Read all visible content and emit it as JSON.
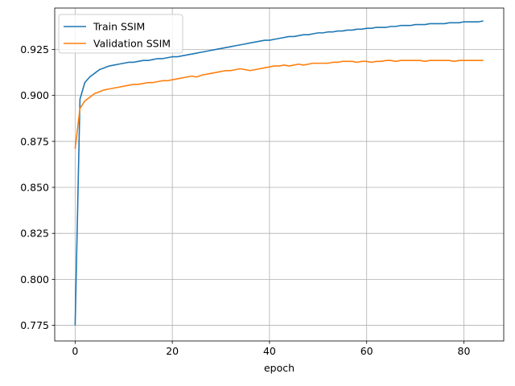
{
  "chart_data": {
    "type": "line",
    "title": "",
    "xlabel": "epoch",
    "ylabel": "",
    "xlim": [
      -4.2,
      88.2
    ],
    "ylim": [
      0.7665,
      0.9475
    ],
    "xticks": [
      0,
      20,
      40,
      60,
      80
    ],
    "yticks": [
      0.775,
      0.8,
      0.825,
      0.85,
      0.875,
      0.9,
      0.925
    ],
    "ytick_labels": [
      "0.775",
      "0.800",
      "0.825",
      "0.850",
      "0.875",
      "0.900",
      "0.925"
    ],
    "xtick_labels": [
      "0",
      "20",
      "40",
      "60",
      "80"
    ],
    "grid": true,
    "legend_position": "upper-left",
    "series": [
      {
        "name": "Train SSIM",
        "color": "#1f77b4",
        "x": [
          0,
          1,
          2,
          3,
          4,
          5,
          6,
          7,
          8,
          9,
          10,
          11,
          12,
          13,
          14,
          15,
          16,
          17,
          18,
          19,
          20,
          21,
          22,
          23,
          24,
          25,
          26,
          27,
          28,
          29,
          30,
          31,
          32,
          33,
          34,
          35,
          36,
          37,
          38,
          39,
          40,
          41,
          42,
          43,
          44,
          45,
          46,
          47,
          48,
          49,
          50,
          51,
          52,
          53,
          54,
          55,
          56,
          57,
          58,
          59,
          60,
          61,
          62,
          63,
          64,
          65,
          66,
          67,
          68,
          69,
          70,
          71,
          72,
          73,
          74,
          75,
          76,
          77,
          78,
          79,
          80,
          81,
          82,
          83,
          84
        ],
        "values": [
          0.775,
          0.898,
          0.907,
          0.91,
          0.912,
          0.914,
          0.915,
          0.916,
          0.9165,
          0.917,
          0.9175,
          0.918,
          0.918,
          0.9185,
          0.919,
          0.919,
          0.9195,
          0.92,
          0.92,
          0.9205,
          0.921,
          0.921,
          0.9215,
          0.922,
          0.9225,
          0.923,
          0.9235,
          0.924,
          0.9245,
          0.925,
          0.9255,
          0.926,
          0.9265,
          0.927,
          0.9275,
          0.928,
          0.9285,
          0.929,
          0.9295,
          0.93,
          0.93,
          0.9305,
          0.931,
          0.9315,
          0.932,
          0.932,
          0.9325,
          0.933,
          0.933,
          0.9335,
          0.934,
          0.934,
          0.9345,
          0.9345,
          0.935,
          0.935,
          0.9355,
          0.9355,
          0.936,
          0.936,
          0.9365,
          0.9365,
          0.937,
          0.937,
          0.937,
          0.9375,
          0.9375,
          0.938,
          0.938,
          0.938,
          0.9385,
          0.9385,
          0.9385,
          0.939,
          0.939,
          0.939,
          0.939,
          0.9395,
          0.9395,
          0.9395,
          0.94,
          0.94,
          0.94,
          0.94,
          0.9405
        ]
      },
      {
        "name": "Validation SSIM",
        "color": "#ff7f0e",
        "x": [
          0,
          1,
          2,
          3,
          4,
          5,
          6,
          7,
          8,
          9,
          10,
          11,
          12,
          13,
          14,
          15,
          16,
          17,
          18,
          19,
          20,
          21,
          22,
          23,
          24,
          25,
          26,
          27,
          28,
          29,
          30,
          31,
          32,
          33,
          34,
          35,
          36,
          37,
          38,
          39,
          40,
          41,
          42,
          43,
          44,
          45,
          46,
          47,
          48,
          49,
          50,
          51,
          52,
          53,
          54,
          55,
          56,
          57,
          58,
          59,
          60,
          61,
          62,
          63,
          64,
          65,
          66,
          67,
          68,
          69,
          70,
          71,
          72,
          73,
          74,
          75,
          76,
          77,
          78,
          79,
          80,
          81,
          82,
          83,
          84
        ],
        "values": [
          0.871,
          0.893,
          0.897,
          0.899,
          0.901,
          0.902,
          0.903,
          0.9035,
          0.904,
          0.9045,
          0.905,
          0.9055,
          0.906,
          0.906,
          0.9065,
          0.907,
          0.907,
          0.9075,
          0.908,
          0.908,
          0.9085,
          0.909,
          0.9095,
          0.91,
          0.9105,
          0.91,
          0.911,
          0.9115,
          0.912,
          0.9125,
          0.913,
          0.9135,
          0.9135,
          0.914,
          0.9145,
          0.914,
          0.9135,
          0.914,
          0.9145,
          0.915,
          0.9155,
          0.916,
          0.916,
          0.9165,
          0.916,
          0.9165,
          0.917,
          0.9165,
          0.917,
          0.9175,
          0.9175,
          0.9175,
          0.9175,
          0.918,
          0.918,
          0.9185,
          0.9185,
          0.9185,
          0.918,
          0.9185,
          0.9185,
          0.918,
          0.9185,
          0.9185,
          0.919,
          0.919,
          0.9185,
          0.919,
          0.919,
          0.919,
          0.919,
          0.919,
          0.9185,
          0.919,
          0.919,
          0.919,
          0.919,
          0.919,
          0.9185,
          0.919,
          0.919,
          0.919,
          0.919,
          0.919,
          0.919
        ]
      }
    ]
  }
}
